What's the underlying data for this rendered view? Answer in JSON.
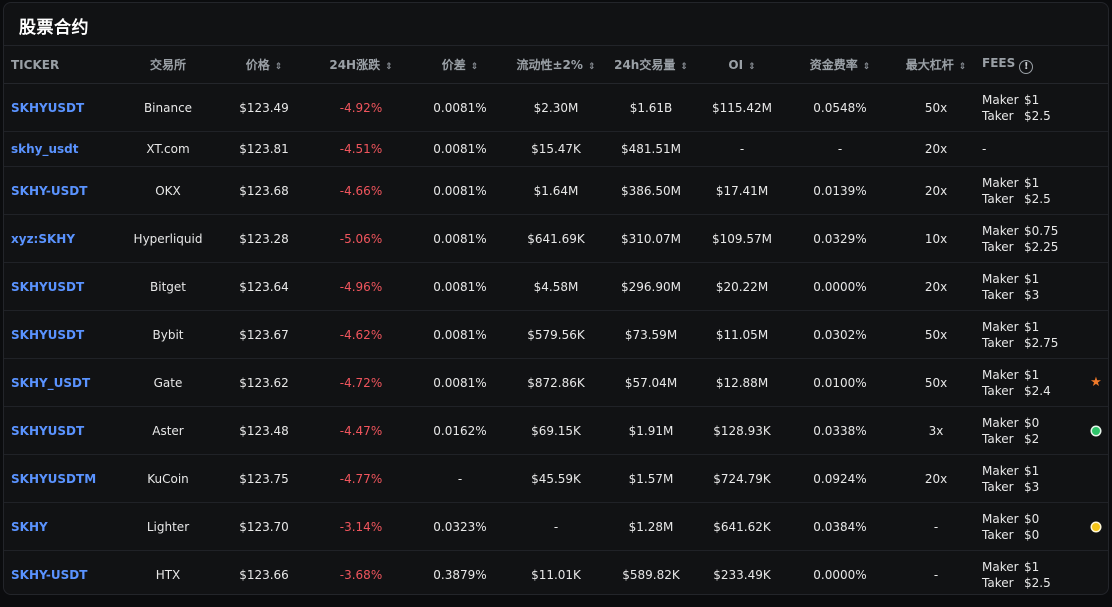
{
  "title": "股票合约",
  "headers": {
    "ticker": "TICKER",
    "exchange": "交易所",
    "price": "价格",
    "change": "24H涨跌",
    "spread": "价差",
    "liquidity": "流动性±2%",
    "volume": "24h交易量",
    "oi": "OI",
    "funding": "资金费率",
    "leverage": "最大杠杆",
    "fees": "FEES",
    "sort_glyph": "⇕",
    "info_glyph": "!"
  },
  "fee_labels": {
    "maker": "Maker",
    "taker": "Taker"
  },
  "rows": [
    {
      "ticker": "SKHYUSDT",
      "exchange": "Binance",
      "price": "$123.49",
      "change": "-4.92%",
      "spread": "0.0081%",
      "liquidity": "$2.30M",
      "volume": "$1.61B",
      "oi": "$115.42M",
      "funding": "0.0548%",
      "leverage": "50x",
      "maker": "$1",
      "taker": "$2.5",
      "fees_none": "",
      "mark": ""
    },
    {
      "ticker": "skhy_usdt",
      "exchange": "XT.com",
      "price": "$123.81",
      "change": "-4.51%",
      "spread": "0.0081%",
      "liquidity": "$15.47K",
      "volume": "$481.51M",
      "oi": "-",
      "funding": "-",
      "leverage": "20x",
      "maker": "",
      "taker": "",
      "fees_none": "-",
      "mark": ""
    },
    {
      "ticker": "SKHY-USDT",
      "exchange": "OKX",
      "price": "$123.68",
      "change": "-4.66%",
      "spread": "0.0081%",
      "liquidity": "$1.64M",
      "volume": "$386.50M",
      "oi": "$17.41M",
      "funding": "0.0139%",
      "leverage": "20x",
      "maker": "$1",
      "taker": "$2.5",
      "fees_none": "",
      "mark": ""
    },
    {
      "ticker": "xyz:SKHY",
      "exchange": "Hyperliquid",
      "price": "$123.28",
      "change": "-5.06%",
      "spread": "0.0081%",
      "liquidity": "$641.69K",
      "volume": "$310.07M",
      "oi": "$109.57M",
      "funding": "0.0329%",
      "leverage": "10x",
      "maker": "$0.75",
      "taker": "$2.25",
      "fees_none": "",
      "mark": ""
    },
    {
      "ticker": "SKHYUSDT",
      "exchange": "Bitget",
      "price": "$123.64",
      "change": "-4.96%",
      "spread": "0.0081%",
      "liquidity": "$4.58M",
      "volume": "$296.90M",
      "oi": "$20.22M",
      "funding": "0.0000%",
      "leverage": "20x",
      "maker": "$1",
      "taker": "$3",
      "fees_none": "",
      "mark": ""
    },
    {
      "ticker": "SKHYUSDT",
      "exchange": "Bybit",
      "price": "$123.67",
      "change": "-4.62%",
      "spread": "0.0081%",
      "liquidity": "$579.56K",
      "volume": "$73.59M",
      "oi": "$11.05M",
      "funding": "0.0302%",
      "leverage": "50x",
      "maker": "$1",
      "taker": "$2.75",
      "fees_none": "",
      "mark": ""
    },
    {
      "ticker": "SKHY_USDT",
      "exchange": "Gate",
      "price": "$123.62",
      "change": "-4.72%",
      "spread": "0.0081%",
      "liquidity": "$872.86K",
      "volume": "$57.04M",
      "oi": "$12.88M",
      "funding": "0.0100%",
      "leverage": "50x",
      "maker": "$1",
      "taker": "$2.4",
      "fees_none": "",
      "mark": "star"
    },
    {
      "ticker": "SKHYUSDT",
      "exchange": "Aster",
      "price": "$123.48",
      "change": "-4.47%",
      "spread": "0.0162%",
      "liquidity": "$69.15K",
      "volume": "$1.91M",
      "oi": "$128.93K",
      "funding": "0.0338%",
      "leverage": "3x",
      "maker": "$0",
      "taker": "$2",
      "fees_none": "",
      "mark": "green-dot"
    },
    {
      "ticker": "SKHYUSDTM",
      "exchange": "KuCoin",
      "price": "$123.75",
      "change": "-4.77%",
      "spread": "-",
      "liquidity": "$45.59K",
      "volume": "$1.57M",
      "oi": "$724.79K",
      "funding": "0.0924%",
      "leverage": "20x",
      "maker": "$1",
      "taker": "$3",
      "fees_none": "",
      "mark": ""
    },
    {
      "ticker": "SKHY",
      "exchange": "Lighter",
      "price": "$123.70",
      "change": "-3.14%",
      "spread": "0.0323%",
      "liquidity": "-",
      "volume": "$1.28M",
      "oi": "$641.62K",
      "funding": "0.0384%",
      "leverage": "-",
      "maker": "$0",
      "taker": "$0",
      "fees_none": "",
      "mark": "yellow-dot"
    },
    {
      "ticker": "SKHY-USDT",
      "exchange": "HTX",
      "price": "$123.66",
      "change": "-3.68%",
      "spread": "0.3879%",
      "liquidity": "$11.01K",
      "volume": "$589.82K",
      "oi": "$233.49K",
      "funding": "0.0000%",
      "leverage": "-",
      "maker": "$1",
      "taker": "$2.5",
      "fees_none": "",
      "mark": ""
    }
  ],
  "colors": {
    "ticker": "#5a93ff",
    "negative": "#f0555d",
    "star": "#f07a2a",
    "green_dot": "#2fc46a",
    "yellow_dot": "#f5c518"
  }
}
